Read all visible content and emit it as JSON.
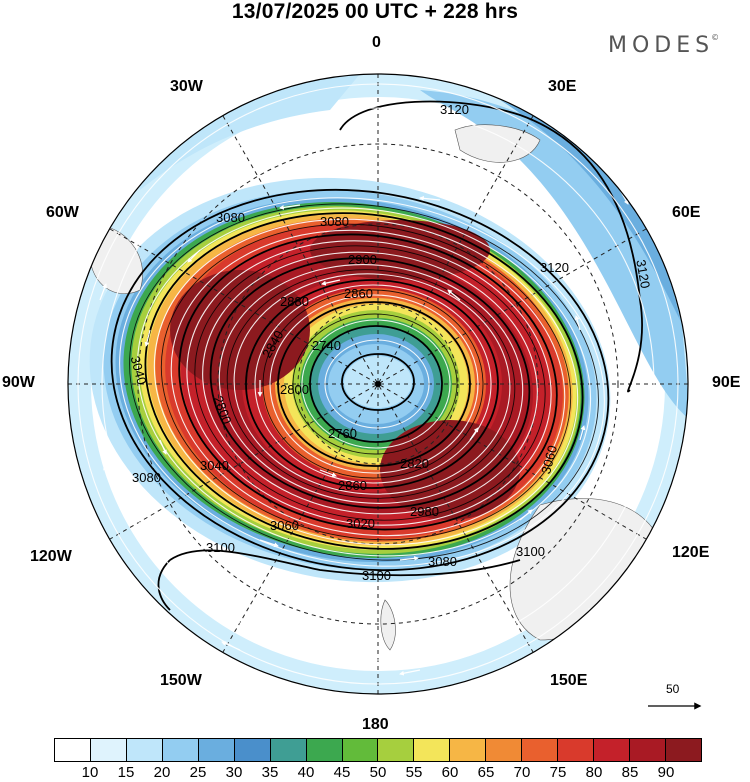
{
  "title": "13/07/2025  00 UTC  + 228 hrs",
  "brand": "MODES",
  "brand_mark": "©",
  "longitude_labels": {
    "n": "0",
    "s": "180",
    "e": "90E",
    "w": "90W",
    "ne30": "30E",
    "ne60": "60E",
    "nw30": "30W",
    "nw60": "60W",
    "se120": "120E",
    "se150": "150E",
    "sw120": "120W",
    "sw150": "150W"
  },
  "contour_labels": [
    "3120",
    "3120",
    "3120",
    "3080",
    "3080",
    "3080",
    "3060",
    "3060",
    "3040",
    "3040",
    "3020",
    "2980",
    "2900",
    "2880",
    "2860",
    "2860",
    "2840",
    "2820",
    "2800",
    "2800",
    "2760",
    "2740",
    "3100",
    "3100",
    "3100",
    "3080"
  ],
  "reference_vector": "50",
  "colorbar": {
    "colors": [
      "#ffffff",
      "#dff3fd",
      "#bfe6fa",
      "#93cdf1",
      "#6aaedf",
      "#4a8fcb",
      "#3f9e94",
      "#3ca84f",
      "#62bb3a",
      "#a6cf3e",
      "#f3e55a",
      "#f6b645",
      "#f08a35",
      "#e9602e",
      "#d93a2c",
      "#c4212a",
      "#a91a24",
      "#8c1a1f"
    ],
    "tick_labels": [
      "10",
      "15",
      "20",
      "25",
      "30",
      "35",
      "40",
      "45",
      "50",
      "55",
      "60",
      "65",
      "70",
      "75",
      "80",
      "85",
      "90"
    ]
  }
}
